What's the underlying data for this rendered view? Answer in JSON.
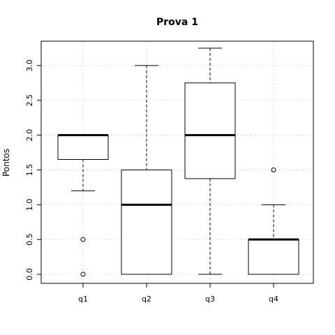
{
  "chart_data": {
    "type": "box",
    "title": "Prova 1",
    "xlabel": "",
    "ylabel": "Pontos",
    "ylim": [
      -0.13,
      3.35
    ],
    "grid": true,
    "yticks": [
      0.0,
      0.5,
      1.0,
      1.5,
      2.0,
      2.5,
      3.0
    ],
    "ytick_labels": [
      "0.0",
      "0.5",
      "1.0",
      "1.5",
      "2.0",
      "2.5",
      "3.0"
    ],
    "categories": [
      "q1",
      "q2",
      "q3",
      "q4"
    ],
    "boxes": [
      {
        "whisker_low": 1.2,
        "q1": 1.65,
        "median": 2.0,
        "q3": 2.0,
        "whisker_high": 2.0,
        "outliers": [
          0.5,
          0.0
        ]
      },
      {
        "whisker_low": 0.0,
        "q1": 0.0,
        "median": 1.0,
        "q3": 1.5,
        "whisker_high": 3.0,
        "outliers": []
      },
      {
        "whisker_low": 0.0,
        "q1": 1.375,
        "median": 2.0,
        "q3": 2.75,
        "whisker_high": 3.25,
        "outliers": []
      },
      {
        "whisker_low": 0.0,
        "q1": 0.0,
        "median": 0.5,
        "q3": 0.5,
        "whisker_high": 1.0,
        "outliers": [
          1.5
        ]
      }
    ]
  }
}
